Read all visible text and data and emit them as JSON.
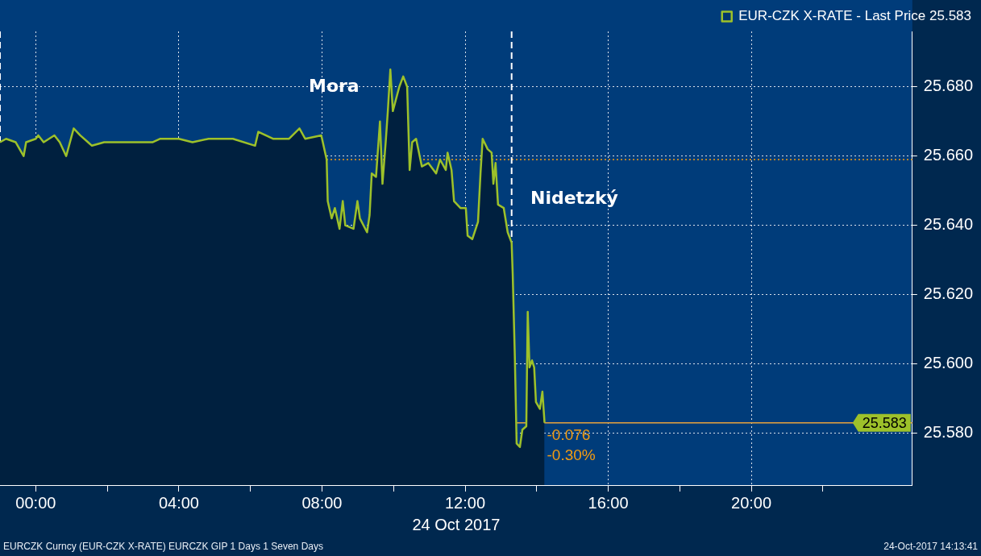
{
  "chart_data": {
    "type": "area",
    "xlabel": "24 Oct 2017",
    "x": [
      -1.0,
      -0.83,
      -0.56,
      -0.34,
      -0.27,
      0,
      0.07,
      0.22,
      0.52,
      0.67,
      0.85,
      1.06,
      1.24,
      1.46,
      1.57,
      1.91,
      2.36,
      2.7,
      3.26,
      3.48,
      3.71,
      4.0,
      4.38,
      4.83,
      5.51,
      6.13,
      6.22,
      6.63,
      7.08,
      7.37,
      7.53,
      7.98,
      8.13,
      8.16,
      8.27,
      8.36,
      8.49,
      8.58,
      8.65,
      8.88,
      8.99,
      9.06,
      9.26,
      9.33,
      9.39,
      9.51,
      9.62,
      9.69,
      9.78,
      9.84,
      9.91,
      9.98,
      10.16,
      10.27,
      10.38,
      10.45,
      10.52,
      10.63,
      10.79,
      10.97,
      11.19,
      11.3,
      11.46,
      11.51,
      11.62,
      11.69,
      11.87,
      12.02,
      12.07,
      12.2,
      12.36,
      12.43,
      12.49,
      12.63,
      12.74,
      12.79,
      12.85,
      12.92,
      13.08,
      13.19,
      13.3,
      13.33,
      13.39,
      13.44,
      13.53,
      13.6,
      13.71,
      13.75,
      13.8,
      13.87,
      13.93,
      13.98,
      14.09,
      14.16,
      14.22
    ],
    "series": [
      {
        "color": "#00203f",
        "values": [
          25.664,
          25.665,
          25.664,
          25.66,
          25.664,
          25.665,
          25.666,
          25.664,
          25.666,
          25.664,
          25.66,
          25.668,
          25.666,
          25.664,
          25.663,
          25.664,
          25.664,
          25.664,
          25.664,
          25.665,
          25.665,
          25.665,
          25.664,
          25.665,
          25.665,
          25.663,
          25.667,
          25.665,
          25.665,
          25.668,
          25.665,
          25.666,
          25.659,
          25.647,
          25.642,
          25.645,
          25.639,
          25.647,
          25.64,
          25.639,
          25.647,
          25.642,
          25.638,
          25.643,
          25.655,
          25.654,
          25.67,
          25.652,
          25.664,
          25.673,
          25.685,
          25.673,
          25.68,
          25.683,
          25.68,
          25.656,
          25.664,
          25.665,
          25.657,
          25.658,
          25.655,
          25.659,
          25.656,
          25.661,
          25.656,
          25.647,
          25.645,
          25.645,
          25.637,
          25.636,
          25.641,
          25.655,
          25.665,
          25.662,
          25.661,
          25.652,
          25.658,
          25.646,
          25.645,
          25.638,
          25.635,
          25.626,
          25.602,
          25.577,
          25.576,
          25.581,
          25.582,
          25.615,
          25.599,
          25.601,
          25.599,
          25.589,
          25.587,
          25.592,
          25.583
        ]
      },
      {
        "type": "line",
        "name": "EUR-CZK X-RATE - Last Price 25.583",
        "color": "#9dc12a",
        "values": [
          25.664,
          25.665,
          25.664,
          25.66,
          25.664,
          25.665,
          25.666,
          25.664,
          25.666,
          25.664,
          25.66,
          25.668,
          25.666,
          25.664,
          25.663,
          25.664,
          25.664,
          25.664,
          25.664,
          25.665,
          25.665,
          25.665,
          25.664,
          25.665,
          25.665,
          25.663,
          25.667,
          25.665,
          25.665,
          25.668,
          25.665,
          25.666,
          25.659,
          25.647,
          25.642,
          25.645,
          25.639,
          25.647,
          25.64,
          25.639,
          25.647,
          25.642,
          25.638,
          25.643,
          25.655,
          25.654,
          25.67,
          25.652,
          25.664,
          25.673,
          25.685,
          25.673,
          25.68,
          25.683,
          25.68,
          25.656,
          25.664,
          25.665,
          25.657,
          25.658,
          25.655,
          25.659,
          25.656,
          25.661,
          25.656,
          25.647,
          25.645,
          25.645,
          25.637,
          25.636,
          25.641,
          25.655,
          25.665,
          25.662,
          25.661,
          25.652,
          25.658,
          25.646,
          25.645,
          25.638,
          25.635,
          25.626,
          25.602,
          25.577,
          25.576,
          25.581,
          25.582,
          25.615,
          25.599,
          25.601,
          25.599,
          25.589,
          25.587,
          25.592,
          25.583
        ]
      }
    ],
    "xlim": [
      -1,
      24.5
    ],
    "xticks": [
      {
        "value": 0,
        "label": "00:00"
      },
      {
        "value": 2,
        "label": null
      },
      {
        "value": 4,
        "label": "04:00"
      },
      {
        "value": 6,
        "label": null
      },
      {
        "value": 8,
        "label": "08:00"
      },
      {
        "value": 10,
        "label": null
      },
      {
        "value": 12,
        "label": "12:00"
      },
      {
        "value": 14,
        "label": null
      },
      {
        "value": 16,
        "label": "16:00"
      },
      {
        "value": 18,
        "label": null
      },
      {
        "value": 20,
        "label": "20:00"
      },
      {
        "value": 22,
        "label": null
      }
    ],
    "ylim": [
      25.565,
      25.696
    ],
    "yticks": [
      {
        "value": 25.58,
        "label": "25.580"
      },
      {
        "value": 25.6,
        "label": "25.600"
      },
      {
        "value": 25.62,
        "label": "25.620"
      },
      {
        "value": 25.64,
        "label": "25.640"
      },
      {
        "value": 25.66,
        "label": "25.660"
      },
      {
        "value": 25.68,
        "label": "25.680"
      }
    ],
    "grid": true,
    "legend": "top right",
    "line_style": "solid",
    "marker": "none",
    "ref_lines": [
      {
        "axis": "y",
        "value": 25.659,
        "color": "#f39c12",
        "line_style": "dotted"
      },
      {
        "axis": "y",
        "value": 25.583,
        "label": "25.583",
        "color": "#e8a33c",
        "line_style": "solid"
      },
      {
        "axis": "x",
        "value": -1,
        "color": "#ffffff",
        "line_style": "dashed"
      },
      {
        "axis": "x",
        "value": 13.3,
        "color": "#ffffff",
        "line_style": "dashed"
      }
    ],
    "annotations": [
      "Mora",
      "Nidetzký",
      {
        "text": "-0.076",
        "x": 14.22,
        "y": 25.583
      },
      {
        "text": "-0.30%",
        "x": 14.22,
        "y": 25.583
      },
      "EURCZK Curncy (EUR-CZK X-RATE) EURCZK GIP 1 Days 1 Seven Days",
      "24-Oct-2017 14:13:41"
    ]
  }
}
